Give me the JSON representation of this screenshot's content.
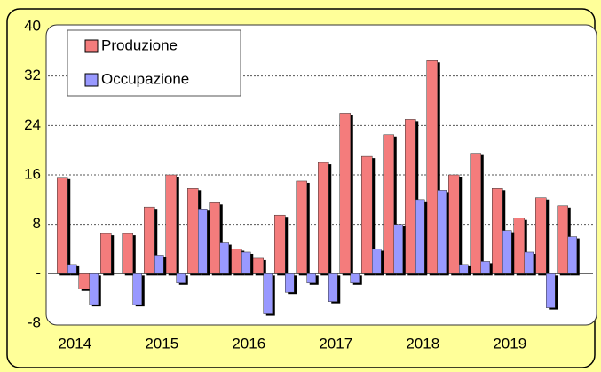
{
  "chart_data": {
    "type": "bar",
    "categories": [
      "2014",
      null,
      null,
      null,
      "2015",
      null,
      null,
      null,
      "2016",
      null,
      null,
      null,
      "2017",
      null,
      null,
      null,
      "2018",
      null,
      null,
      null,
      "2019",
      null,
      null,
      null
    ],
    "series": [
      {
        "name": "Produzione",
        "color": "#f47c7c",
        "values": [
          15.6,
          -2.5,
          6.5,
          6.5,
          10.8,
          16,
          13.8,
          11.5,
          4,
          2.5,
          9.5,
          15,
          18,
          26,
          19,
          22.5,
          25,
          34.5,
          16,
          19.5,
          13.8,
          9,
          12.3,
          11
        ]
      },
      {
        "name": "Occupazione",
        "color": "#9999ff",
        "values": [
          1.5,
          -5,
          0,
          -5,
          3,
          -1.5,
          10.5,
          5,
          3.5,
          -6.5,
          -3,
          -1.5,
          -4.5,
          -1.5,
          4,
          8,
          12,
          13.5,
          1.5,
          2,
          7,
          3.5,
          -5.5,
          6
        ]
      }
    ],
    "ylim": [
      -8,
      40
    ],
    "yticks": [
      -8,
      {
        "value": 0,
        "label": "-"
      },
      8,
      16,
      24,
      32,
      40
    ],
    "grid": true,
    "legend": "top-left"
  }
}
